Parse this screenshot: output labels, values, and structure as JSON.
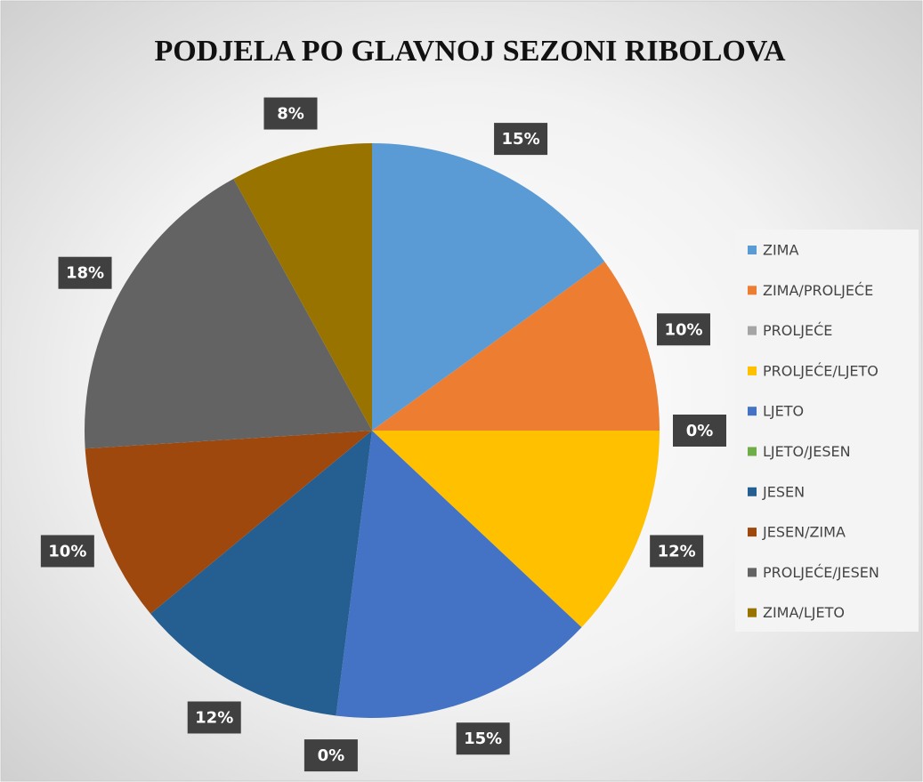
{
  "chart_data": {
    "type": "pie",
    "title": "PODJELA PO GLAVNOJ SEZONI RIBOLOVA",
    "categories": [
      "ZIMA",
      "ZIMA/PROLJEĆE",
      "PROLJEĆE",
      "PROLJEĆE/LJETO",
      "LJETO",
      "LJETO/JESEN",
      "JESEN",
      "JESEN/ZIMA",
      "PROLJEĆE/JESEN",
      "ZIMA/LJETO"
    ],
    "values": [
      15,
      10,
      0,
      12,
      15,
      0,
      12,
      10,
      18,
      8
    ],
    "value_labels": [
      "15%",
      "10%",
      "0%",
      "12%",
      "15%",
      "0%",
      "12%",
      "10%",
      "18%",
      "8%"
    ],
    "colors": [
      "#5b9bd5",
      "#ed7d31",
      "#a5a5a5",
      "#ffc000",
      "#4472c4",
      "#70ad47",
      "#255e91",
      "#9e480e",
      "#636363",
      "#997300"
    ],
    "legend": "right"
  }
}
